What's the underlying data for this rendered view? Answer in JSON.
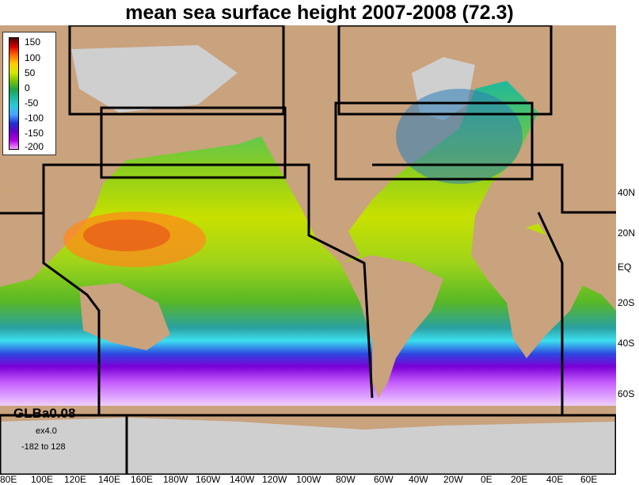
{
  "title": "mean sea surface height 2007-2008 (72.3)",
  "legend": {
    "ticks": [
      "150",
      "100",
      "50",
      "0",
      "-50",
      "-100",
      "-150",
      "-200"
    ],
    "colors": [
      "#4b0000",
      "#d40000",
      "#ff6a00",
      "#ffcc00",
      "#d8e800",
      "#7cc400",
      "#22a34a",
      "#1fb8a0",
      "#2fc9d8",
      "#4aa0ff",
      "#2030d0",
      "#6a00c8",
      "#b000e0",
      "#f2a0ff"
    ]
  },
  "lat_labels": [
    "40N",
    "20N",
    "EQ",
    "20S",
    "40S",
    "60S"
  ],
  "lon_labels": [
    "80E",
    "100E",
    "120E",
    "140E",
    "160E",
    "180W",
    "160W",
    "140W",
    "120W",
    "100W",
    "80W",
    "60W",
    "40W",
    "20W",
    "0E",
    "20E",
    "40E",
    "60E"
  ],
  "info": {
    "run": "GLBa0.08",
    "expt": "ex4.0",
    "range": "-182 to 128"
  },
  "colors": {
    "land": "#c9a27e",
    "ice": "#cfcfcf",
    "boxes": "#000000"
  }
}
